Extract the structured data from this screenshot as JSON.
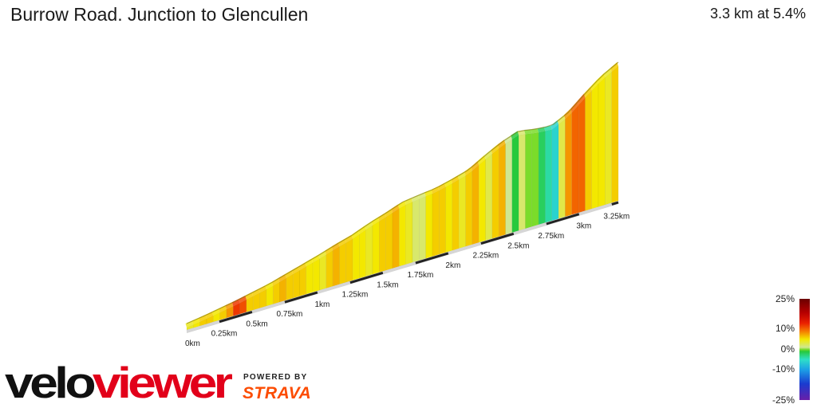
{
  "header": {
    "title": "Burrow Road. Junction to Glencullen",
    "stats": "3.3 km at 5.4%"
  },
  "branding": {
    "logo_text": "veloviewer",
    "powered_by": "POWERED BY",
    "strava": "STRAVA",
    "logo_color": "#e2001a",
    "strava_color": "#fc4c02"
  },
  "legend": {
    "labels": [
      "25%",
      "10%",
      "0%",
      "-10%",
      "-25%"
    ],
    "stops": [
      {
        "grade": 25,
        "color": "#6b0000"
      },
      {
        "grade": 18,
        "color": "#b80000"
      },
      {
        "grade": 13,
        "color": "#ea2000"
      },
      {
        "grade": 9,
        "color": "#f57b00"
      },
      {
        "grade": 5,
        "color": "#f3e800"
      },
      {
        "grade": 1,
        "color": "#cfe890"
      },
      {
        "grade": 0,
        "color": "#7bdc2a"
      },
      {
        "grade": -1,
        "color": "#27c93c"
      },
      {
        "grade": -5,
        "color": "#2ee0c8"
      },
      {
        "grade": -10,
        "color": "#1ca0e6"
      },
      {
        "grade": -17,
        "color": "#1a3bd0"
      },
      {
        "grade": -25,
        "color": "#6a1fa8"
      }
    ]
  },
  "chart_data": {
    "type": "area",
    "title": "Burrow Road. Junction to Glencullen",
    "distance_km": 3.3,
    "average_grade_pct": 5.4,
    "x_ticks": [
      "0km",
      "0.25km",
      "0.5km",
      "0.75km",
      "1km",
      "1.25km",
      "1.5km",
      "1.75km",
      "2km",
      "2.25km",
      "2.5km",
      "2.75km",
      "3km",
      "3.25km"
    ],
    "x_tick_values": [
      0,
      0.25,
      0.5,
      0.75,
      1,
      1.25,
      1.5,
      1.75,
      2,
      2.25,
      2.5,
      2.75,
      3,
      3.25
    ],
    "x_range_km": [
      0,
      3.3
    ],
    "elevation_gain_relative": [
      0,
      0.12,
      0.25,
      0.38,
      0.52,
      0.66,
      0.82,
      0.98,
      1.14,
      1.31,
      1.47,
      1.66,
      1.83,
      2.01,
      2.13,
      2.24,
      2.39,
      2.55,
      2.79,
      3.01,
      3.19,
      3.22,
      3.28,
      3.5,
      3.81,
      4.1,
      4.33
    ],
    "segment_grades_pct": [
      4,
      5,
      6,
      6,
      5,
      6,
      8,
      12,
      11,
      6,
      6,
      6,
      5,
      6,
      7,
      6,
      6,
      6,
      5,
      5,
      4,
      6,
      7,
      6,
      6,
      5,
      5,
      4,
      5,
      6,
      6,
      7,
      5,
      4,
      2,
      2,
      5,
      6,
      6,
      5,
      6,
      4,
      6,
      7,
      5,
      3,
      6,
      7,
      1,
      -1,
      2,
      0,
      0,
      -2,
      -4,
      -6,
      3,
      8,
      10,
      10,
      6,
      5,
      5,
      4,
      6
    ]
  }
}
